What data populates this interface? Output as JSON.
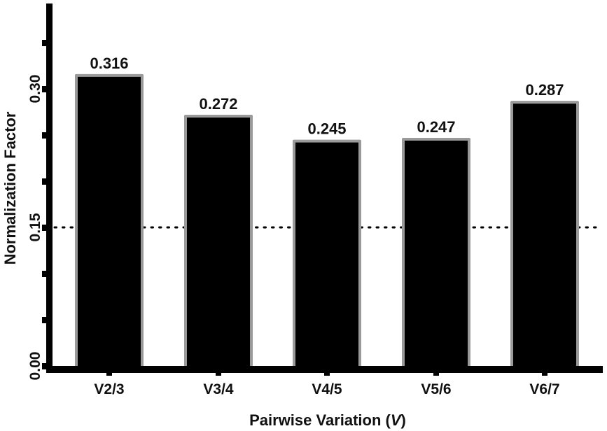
{
  "chart_data": {
    "type": "bar",
    "title": "",
    "xlabel": "Pairwise Variation (V)",
    "xlabel_parts": {
      "prefix": "Pairwise Variation (",
      "italic": "V",
      "suffix": ")"
    },
    "ylabel": "Normalization Factor",
    "categories": [
      "V2/3",
      "V3/4",
      "V4/5",
      "V5/6",
      "V6/7"
    ],
    "values": [
      0.316,
      0.272,
      0.245,
      0.247,
      0.287
    ],
    "value_labels": [
      "0.316",
      "0.272",
      "0.245",
      "0.247",
      "0.287"
    ],
    "ylim": [
      0,
      0.39
    ],
    "yticks_major": [
      0.0,
      0.15,
      0.3
    ],
    "ytick_labels": [
      "0.00",
      "0.15",
      "0.30"
    ],
    "yticks_minor": [
      0.05,
      0.1,
      0.2,
      0.25,
      0.35
    ],
    "reference_line": {
      "y": 0.15,
      "style": "dotted",
      "color": "#000000"
    },
    "grid": false,
    "legend": null,
    "colors": {
      "bar_fill": "#000000",
      "bar_edge": "#9a9a9a",
      "axis": "#000000"
    }
  }
}
